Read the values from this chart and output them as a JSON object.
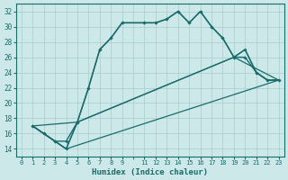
{
  "xlabel": "Humidex (Indice chaleur)",
  "bg_color": "#cce8e8",
  "line_color": "#1a6b6b",
  "grid_color": "#a8cccc",
  "xlim": [
    -0.5,
    23.5
  ],
  "ylim": [
    13,
    33
  ],
  "xticks": [
    0,
    1,
    2,
    3,
    4,
    5,
    6,
    7,
    8,
    9,
    11,
    12,
    13,
    14,
    15,
    16,
    17,
    18,
    19,
    20,
    21,
    22,
    23
  ],
  "yticks": [
    14,
    16,
    18,
    20,
    22,
    24,
    26,
    28,
    30,
    32
  ],
  "curve1_x": [
    1,
    2,
    3,
    4,
    5,
    6,
    7,
    8,
    9,
    11,
    12,
    13,
    14,
    15,
    16,
    17,
    18,
    19,
    20,
    21,
    22,
    23
  ],
  "curve1_y": [
    17,
    16,
    15,
    15,
    17.5,
    22,
    27,
    28.5,
    30.5,
    30.5,
    30.5,
    31,
    32,
    30.5,
    32,
    30,
    28.5,
    26,
    27,
    24,
    23,
    23
  ],
  "curve2_x": [
    1,
    2,
    3,
    4,
    5,
    6,
    7,
    8,
    9,
    11,
    12,
    13,
    14,
    15,
    16,
    17,
    18,
    19,
    20,
    21,
    22,
    23
  ],
  "curve2_y": [
    17,
    16,
    15,
    14,
    17.5,
    22,
    27,
    28.5,
    30.5,
    30.5,
    30.5,
    31,
    32,
    30.5,
    32,
    30,
    28.5,
    26,
    26,
    24,
    23,
    23
  ],
  "line1_x": [
    1,
    4,
    5,
    19,
    20,
    21,
    22,
    23
  ],
  "line1_y": [
    17,
    14,
    17.5,
    26,
    27,
    24,
    23,
    23
  ],
  "line2_x": [
    1,
    4,
    23
  ],
  "line2_y": [
    17,
    14,
    23
  ],
  "line3_x": [
    1,
    5,
    19,
    23
  ],
  "line3_y": [
    17,
    17.5,
    26,
    23
  ]
}
